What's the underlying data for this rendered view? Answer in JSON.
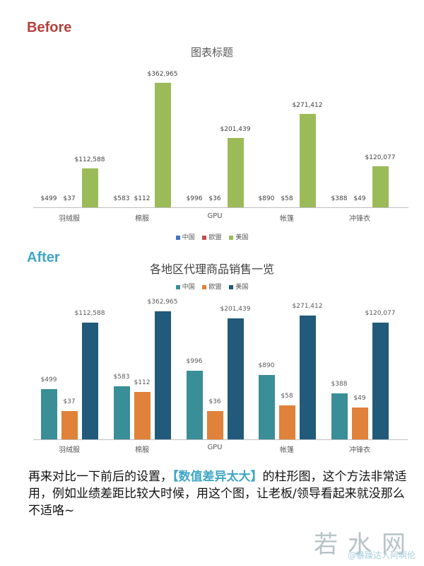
{
  "labels": {
    "before": "Before",
    "after": "After",
    "before_color": "#b5413d",
    "after_color": "#3ea7c4"
  },
  "caption": {
    "part1": "再来对比一下前后的设置，",
    "highlight": "【数值差异太大】",
    "part2": "的柱形图，这个方法非常适用，例如业绩差距比较大时候，用这个图，让老板/领导看起来就没那么不适咯~"
  },
  "watermark": {
    "big": "若水网",
    "small": "@暴躁达人阿啊伦"
  },
  "chart_data": [
    {
      "type": "bar",
      "title": "图表标题",
      "categories": [
        "羽绒服",
        "棉服",
        "GPU",
        "帐篷",
        "冲锋衣"
      ],
      "series": [
        {
          "name": "中国",
          "color": "#4472c4",
          "values": [
            499,
            583,
            996,
            890,
            388
          ],
          "labels": [
            "$499",
            "$583",
            "$996",
            "$890",
            "$388"
          ]
        },
        {
          "name": "欧盟",
          "color": "#c0504d",
          "values": [
            37,
            112,
            36,
            58,
            49
          ],
          "labels": [
            "$37",
            "$112",
            "$36",
            "$58",
            "$49"
          ]
        },
        {
          "name": "美国",
          "color": "#9bbb59",
          "values": [
            112588,
            362965,
            201439,
            271412,
            120077
          ],
          "labels": [
            "$112,588",
            "$362,965",
            "$201,439",
            "$271,412",
            "$120,077"
          ]
        }
      ],
      "xlabel": "",
      "ylabel": "",
      "grid": false,
      "legend_position": "bottom",
      "scale": "linear"
    },
    {
      "type": "bar",
      "title": "各地区代理商品销售一览",
      "categories": [
        "羽绒服",
        "棉服",
        "GPU",
        "帐篷",
        "冲锋衣"
      ],
      "series": [
        {
          "name": "中国",
          "color": "#3a8e98",
          "values": [
            499,
            583,
            996,
            890,
            388
          ],
          "labels": [
            "$499",
            "$583",
            "$996",
            "$890",
            "$388"
          ]
        },
        {
          "name": "欧盟",
          "color": "#e0823a",
          "values": [
            37,
            112,
            36,
            58,
            49
          ],
          "labels": [
            "$37",
            "$112",
            "$36",
            "$58",
            "$49"
          ]
        },
        {
          "name": "美国",
          "color": "#215a7a",
          "values": [
            112588,
            362965,
            201439,
            271412,
            120077
          ],
          "labels": [
            "$112,588",
            "$362,965",
            "$201,439",
            "$271,412",
            "$120,077"
          ]
        }
      ],
      "xlabel": "",
      "ylabel": "",
      "grid": false,
      "legend_position": "top",
      "scale": "per-series (visually equalized)"
    }
  ]
}
